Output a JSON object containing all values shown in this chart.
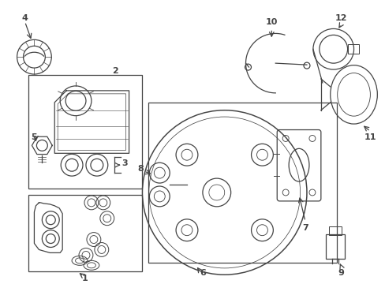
{
  "bg_color": "#ffffff",
  "line_color": "#444444",
  "label_color": "#000000",
  "fig_w": 4.89,
  "fig_h": 3.6,
  "dpi": 100
}
